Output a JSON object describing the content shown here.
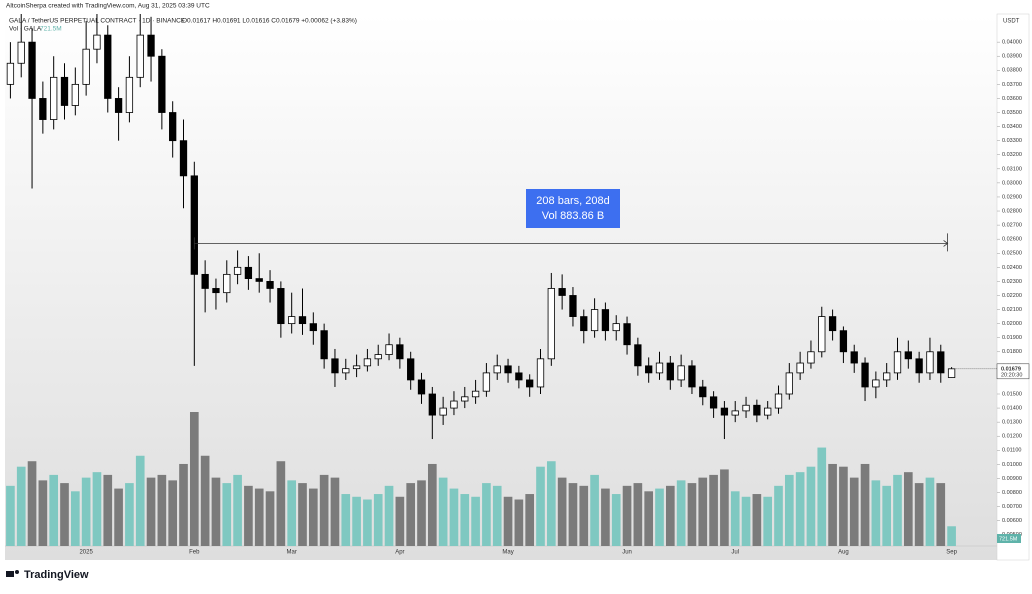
{
  "chart_data": {
    "type": "candlestick",
    "attribution": "AltcoinSherpa created with TradingView.com, Aug 31, 2025 03:39 UTC",
    "title": "GALA / TetherUS PERPETUAL CONTRACT · 1D · BINANCE",
    "ohlc_text": "O0.01617 H0.01691 L0.01616 C0.01679 +0.00062 (+3.83%)",
    "volume_title": "Vol · GALA",
    "volume_value_label": "721.5M",
    "currency": "USDT",
    "last_price_label": "0.01679",
    "countdown": "20:20:30",
    "brand": "TradingView",
    "measure": {
      "price": 0.0257,
      "line1": "208 bars, 208d",
      "line2": "Vol 883.86 B"
    },
    "categories": [
      null,
      null,
      null,
      null,
      null,
      null,
      null,
      "2025",
      null,
      null,
      null,
      null,
      null,
      null,
      null,
      null,
      null,
      "Feb",
      null,
      null,
      null,
      null,
      null,
      null,
      null,
      null,
      "Mar",
      null,
      null,
      null,
      null,
      null,
      null,
      null,
      null,
      null,
      "Apr",
      null,
      null,
      null,
      null,
      null,
      null,
      null,
      null,
      null,
      "May",
      null,
      null,
      null,
      null,
      null,
      null,
      null,
      null,
      null,
      null,
      "Jun",
      null,
      null,
      null,
      null,
      null,
      null,
      null,
      null,
      null,
      "Jul",
      null,
      null,
      null,
      null,
      null,
      null,
      null,
      null,
      null,
      "Aug",
      null,
      null,
      null,
      null,
      null,
      null,
      null,
      null,
      null,
      "Sep"
    ],
    "open": [
      0.037,
      0.0385,
      0.04,
      0.036,
      0.0345,
      0.0375,
      0.0355,
      0.037,
      0.0395,
      0.0405,
      0.036,
      0.035,
      0.0375,
      0.0405,
      0.039,
      0.035,
      0.033,
      0.0305,
      0.0235,
      0.0225,
      0.0222,
      0.0235,
      0.024,
      0.0232,
      0.023,
      0.0225,
      0.02,
      0.0205,
      0.02,
      0.0195,
      0.0175,
      0.0165,
      0.0168,
      0.017,
      0.0175,
      0.0178,
      0.0185,
      0.0175,
      0.016,
      0.015,
      0.0135,
      0.014,
      0.0145,
      0.0148,
      0.0152,
      0.0165,
      0.017,
      0.0165,
      0.016,
      0.0155,
      0.0175,
      0.0225,
      0.022,
      0.0205,
      0.0195,
      0.021,
      0.0195,
      0.02,
      0.0185,
      0.017,
      0.0165,
      0.0172,
      0.016,
      0.017,
      0.0155,
      0.0148,
      0.014,
      0.0135,
      0.0138,
      0.0142,
      0.0135,
      0.014,
      0.015,
      0.0165,
      0.0172,
      0.018,
      0.0205,
      0.0195,
      0.018,
      0.0172,
      0.0155,
      0.016,
      0.0165,
      0.018,
      0.0175,
      0.0165,
      0.018,
      0.01617
    ],
    "high": [
      0.04,
      0.042,
      0.041,
      0.0372,
      0.039,
      0.0385,
      0.0382,
      0.0415,
      0.042,
      0.0412,
      0.0368,
      0.039,
      0.042,
      0.0418,
      0.0395,
      0.0358,
      0.0345,
      0.0315,
      0.0245,
      0.0232,
      0.0245,
      0.0252,
      0.0248,
      0.025,
      0.0238,
      0.023,
      0.0222,
      0.0225,
      0.0208,
      0.02,
      0.0182,
      0.0175,
      0.0178,
      0.0182,
      0.0185,
      0.0193,
      0.019,
      0.018,
      0.0165,
      0.0155,
      0.0148,
      0.0152,
      0.0155,
      0.016,
      0.0172,
      0.0178,
      0.0175,
      0.017,
      0.0164,
      0.0182,
      0.0236,
      0.0235,
      0.0226,
      0.021,
      0.0218,
      0.0215,
      0.0206,
      0.0205,
      0.019,
      0.0176,
      0.018,
      0.0177,
      0.0178,
      0.0174,
      0.016,
      0.0152,
      0.0145,
      0.0145,
      0.0148,
      0.0146,
      0.0145,
      0.0156,
      0.0172,
      0.018,
      0.0188,
      0.0212,
      0.021,
      0.0198,
      0.0185,
      0.0176,
      0.0166,
      0.0172,
      0.019,
      0.0188,
      0.018,
      0.019,
      0.0185,
      0.01691
    ],
    "low": [
      0.036,
      0.0375,
      0.0296,
      0.0335,
      0.0338,
      0.0345,
      0.0348,
      0.0362,
      0.0385,
      0.035,
      0.033,
      0.0343,
      0.0368,
      0.0372,
      0.0338,
      0.0318,
      0.0282,
      0.017,
      0.0208,
      0.021,
      0.0215,
      0.0228,
      0.0224,
      0.0222,
      0.0215,
      0.019,
      0.0193,
      0.0192,
      0.0185,
      0.0168,
      0.0155,
      0.016,
      0.0162,
      0.0166,
      0.017,
      0.0174,
      0.0168,
      0.0153,
      0.0143,
      0.0118,
      0.0128,
      0.0135,
      0.014,
      0.0143,
      0.0148,
      0.016,
      0.0158,
      0.0154,
      0.0148,
      0.015,
      0.017,
      0.021,
      0.0198,
      0.0186,
      0.019,
      0.0188,
      0.0188,
      0.0178,
      0.0163,
      0.0158,
      0.016,
      0.0153,
      0.0155,
      0.015,
      0.0142,
      0.0133,
      0.0118,
      0.013,
      0.0133,
      0.013,
      0.0132,
      0.0136,
      0.0146,
      0.016,
      0.0168,
      0.0176,
      0.0188,
      0.0172,
      0.0165,
      0.0145,
      0.0147,
      0.0155,
      0.016,
      0.0168,
      0.0158,
      0.016,
      0.0158,
      0.01616
    ],
    "close": [
      0.0385,
      0.04,
      0.036,
      0.0345,
      0.0375,
      0.0355,
      0.037,
      0.0395,
      0.0405,
      0.036,
      0.035,
      0.0375,
      0.0405,
      0.039,
      0.035,
      0.033,
      0.0305,
      0.0235,
      0.0225,
      0.0222,
      0.0235,
      0.024,
      0.0232,
      0.023,
      0.0225,
      0.02,
      0.0205,
      0.02,
      0.0195,
      0.0175,
      0.0165,
      0.0168,
      0.017,
      0.0175,
      0.0178,
      0.0185,
      0.0175,
      0.016,
      0.015,
      0.0135,
      0.014,
      0.0145,
      0.0148,
      0.0152,
      0.0165,
      0.017,
      0.0165,
      0.016,
      0.0155,
      0.0175,
      0.0225,
      0.022,
      0.0205,
      0.0195,
      0.021,
      0.0195,
      0.02,
      0.0185,
      0.017,
      0.0165,
      0.0172,
      0.016,
      0.017,
      0.0155,
      0.0148,
      0.014,
      0.0135,
      0.0138,
      0.0142,
      0.0135,
      0.014,
      0.015,
      0.0165,
      0.0172,
      0.018,
      0.0205,
      0.0195,
      0.018,
      0.0172,
      0.0155,
      0.016,
      0.0165,
      0.018,
      0.0175,
      0.0165,
      0.018,
      0.0165,
      0.01679
    ],
    "volume": [
      2200,
      2900,
      3100,
      2400,
      2600,
      2300,
      2000,
      2500,
      2700,
      2600,
      2100,
      2300,
      3300,
      2500,
      2600,
      2400,
      3000,
      4900,
      3300,
      2500,
      2300,
      2600,
      2200,
      2100,
      2000,
      3100,
      2400,
      2300,
      2100,
      2600,
      2500,
      1900,
      1800,
      1700,
      1900,
      2200,
      1800,
      2300,
      2400,
      3000,
      2500,
      2100,
      1900,
      1800,
      2300,
      2200,
      1800,
      1700,
      1900,
      2900,
      3100,
      2500,
      2300,
      2200,
      2600,
      2100,
      1900,
      2200,
      2300,
      2000,
      2100,
      2200,
      2400,
      2300,
      2500,
      2600,
      2800,
      2000,
      1800,
      1900,
      1800,
      2200,
      2600,
      2700,
      2900,
      3600,
      3000,
      2900,
      2500,
      3000,
      2400,
      2200,
      2600,
      2700,
      2300,
      2500,
      2300,
      721.5
    ],
    "up_color": "#ffffff",
    "down_color": "#000000",
    "volume_up_color": "#7fc8c1",
    "volume_down_color": "#7b7b7b",
    "measure_color": "#3d6ff0",
    "ylim": [
      0.0042,
      0.042
    ],
    "yticks": [
      {
        "value": 0.005,
        "label": "0.00500"
      },
      {
        "value": 0.006,
        "label": "0.00600"
      },
      {
        "value": 0.007,
        "label": "0.00700"
      },
      {
        "value": 0.008,
        "label": "0.00800"
      },
      {
        "value": 0.009,
        "label": "0.00900"
      },
      {
        "value": 0.01,
        "label": "0.01000"
      },
      {
        "value": 0.011,
        "label": "0.01100"
      },
      {
        "value": 0.012,
        "label": "0.01200"
      },
      {
        "value": 0.013,
        "label": "0.01300"
      },
      {
        "value": 0.014,
        "label": "0.01400"
      },
      {
        "value": 0.015,
        "label": "0.01500"
      },
      {
        "value": 0.017,
        "label": "0.01700"
      },
      {
        "value": 0.018,
        "label": "0.01800"
      },
      {
        "value": 0.019,
        "label": "0.01900"
      },
      {
        "value": 0.02,
        "label": "0.02000"
      },
      {
        "value": 0.021,
        "label": "0.02100"
      },
      {
        "value": 0.022,
        "label": "0.02200"
      },
      {
        "value": 0.023,
        "label": "0.02300"
      },
      {
        "value": 0.024,
        "label": "0.02400"
      },
      {
        "value": 0.025,
        "label": "0.02500"
      },
      {
        "value": 0.026,
        "label": "0.02600"
      },
      {
        "value": 0.027,
        "label": "0.02700"
      },
      {
        "value": 0.028,
        "label": "0.02800"
      },
      {
        "value": 0.029,
        "label": "0.02900"
      },
      {
        "value": 0.03,
        "label": "0.03000"
      },
      {
        "value": 0.031,
        "label": "0.03100"
      },
      {
        "value": 0.032,
        "label": "0.03200"
      },
      {
        "value": 0.033,
        "label": "0.03300"
      },
      {
        "value": 0.034,
        "label": "0.03400"
      },
      {
        "value": 0.035,
        "label": "0.03500"
      },
      {
        "value": 0.036,
        "label": "0.03600"
      },
      {
        "value": 0.037,
        "label": "0.03700"
      },
      {
        "value": 0.038,
        "label": "0.03800"
      },
      {
        "value": 0.039,
        "label": "0.03900"
      },
      {
        "value": 0.04,
        "label": "0.04000"
      }
    ],
    "grid": false
  }
}
